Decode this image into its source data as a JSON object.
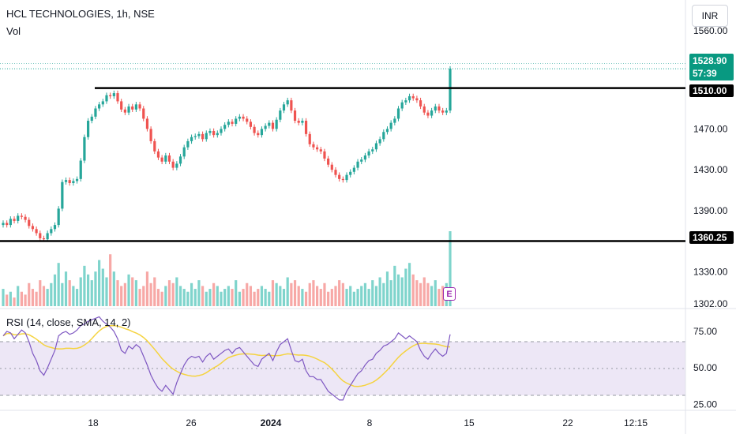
{
  "header": {
    "symbol": "HCL TECHNOLOGIES, 1h, NSE",
    "volume_label": "Vol",
    "rsi_label": "RSI (14, close, SMA, 14, 2)",
    "currency": "INR"
  },
  "price_tags": {
    "last": "1528.90",
    "countdown": "57:39",
    "resistance": "1510.00",
    "support": "1360.25"
  },
  "earnings_marker": "E",
  "colors": {
    "up": "#26a69a",
    "down": "#ef5350",
    "rsi_line": "#7e57c2",
    "rsi_ma": "#f5d33f",
    "rsi_band": "#ede7f6",
    "level_line": "#000000",
    "tag_bg": "#000000",
    "last_tag_bg": "#089981"
  },
  "chart_data": {
    "type": "candlestick",
    "price_axis": {
      "ticks": [
        "1560.00",
        "1510.00",
        "1470.00",
        "1430.00",
        "1390.00",
        "1330.00",
        "1302.00"
      ],
      "range": [
        1295,
        1573
      ]
    },
    "rsi_axis": {
      "ticks": [
        "75.00",
        "50.00",
        "25.00"
      ],
      "range": [
        22,
        88
      ]
    },
    "time_axis": {
      "ticks": [
        "18",
        "26",
        "2024",
        "8",
        "15",
        "22",
        "12:15"
      ]
    },
    "levels": [
      1510.0,
      1360.25
    ],
    "last_price": 1528.9,
    "close_series": [
      1378,
      1376,
      1382,
      1380,
      1385,
      1384,
      1381,
      1375,
      1372,
      1368,
      1363,
      1362,
      1368,
      1372,
      1376,
      1392,
      1418,
      1420,
      1417,
      1419,
      1421,
      1439,
      1462,
      1478,
      1482,
      1490,
      1494,
      1497,
      1503,
      1502,
      1505,
      1497,
      1489,
      1486,
      1492,
      1489,
      1494,
      1490,
      1480,
      1470,
      1458,
      1448,
      1442,
      1438,
      1444,
      1438,
      1432,
      1436,
      1443,
      1452,
      1458,
      1462,
      1463,
      1465,
      1460,
      1466,
      1468,
      1464,
      1466,
      1470,
      1474,
      1477,
      1475,
      1480,
      1482,
      1480,
      1477,
      1472,
      1466,
      1464,
      1470,
      1473,
      1476,
      1470,
      1479,
      1488,
      1494,
      1498,
      1488,
      1478,
      1476,
      1478,
      1465,
      1455,
      1452,
      1450,
      1448,
      1441,
      1435,
      1430,
      1425,
      1421,
      1420,
      1425,
      1428,
      1432,
      1438,
      1440,
      1444,
      1448,
      1450,
      1456,
      1460,
      1467,
      1470,
      1476,
      1480,
      1490,
      1496,
      1498,
      1502,
      1500,
      1498,
      1492,
      1486,
      1483,
      1488,
      1492,
      1488,
      1486,
      1488,
      1528.9
    ],
    "volume_series": [
      6,
      4,
      5,
      3,
      7,
      5,
      4,
      8,
      6,
      5,
      9,
      7,
      6,
      8,
      11,
      15,
      8,
      12,
      9,
      7,
      6,
      10,
      14,
      11,
      9,
      12,
      16,
      13,
      10,
      18,
      12,
      9,
      7,
      8,
      11,
      10,
      9,
      6,
      7,
      12,
      8,
      10,
      6,
      5,
      7,
      9,
      8,
      10,
      7,
      6,
      5,
      8,
      6,
      9,
      7,
      5,
      6,
      8,
      7,
      5,
      6,
      7,
      6,
      9,
      5,
      6,
      8,
      7,
      5,
      6,
      7,
      6,
      5,
      9,
      8,
      7,
      6,
      10,
      8,
      9,
      7,
      6,
      5,
      8,
      9,
      7,
      6,
      8,
      5,
      6,
      7,
      9,
      8,
      6,
      7,
      5,
      6,
      7,
      8,
      6,
      9,
      7,
      10,
      8,
      12,
      9,
      14,
      11,
      10,
      13,
      15,
      11,
      9,
      8,
      10,
      8,
      7,
      9,
      6,
      7,
      8,
      26
    ],
    "rsi_series": [
      72,
      75,
      74,
      70,
      73,
      76,
      74,
      68,
      60,
      55,
      48,
      45,
      50,
      56,
      62,
      72,
      74,
      75,
      73,
      74,
      76,
      79,
      80,
      82,
      83,
      84,
      85,
      82,
      80,
      78,
      75,
      70,
      62,
      60,
      65,
      63,
      66,
      64,
      58,
      52,
      45,
      40,
      36,
      34,
      38,
      35,
      32,
      40,
      46,
      52,
      56,
      58,
      57,
      58,
      54,
      58,
      60,
      56,
      58,
      60,
      62,
      63,
      60,
      63,
      64,
      61,
      58,
      55,
      52,
      51,
      56,
      58,
      60,
      55,
      61,
      66,
      68,
      70,
      62,
      55,
      54,
      56,
      48,
      44,
      44,
      42,
      42,
      38,
      34,
      32,
      30,
      28,
      28,
      34,
      38,
      42,
      46,
      48,
      52,
      55,
      56,
      60,
      62,
      65,
      66,
      68,
      70,
      74,
      72,
      70,
      72,
      70,
      68,
      62,
      58,
      56,
      60,
      63,
      60,
      58,
      60,
      73
    ]
  }
}
